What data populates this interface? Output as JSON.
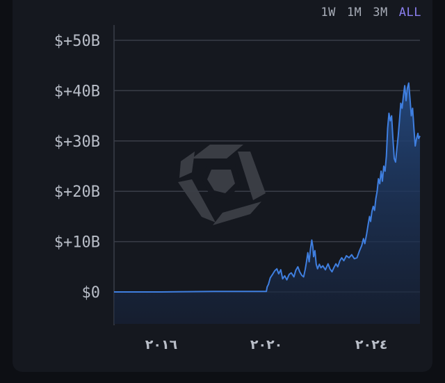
{
  "range_selector": {
    "options": [
      "1W",
      "1M",
      "3M",
      "ALL"
    ],
    "selected": "ALL"
  },
  "colors": {
    "line": "#3f7fe0",
    "fill_top": "#24487e",
    "fill_bottom": "#16223a",
    "grid": "#3a3e48",
    "active_range": "#8b7ff0",
    "watermark": "#3c3f47"
  },
  "watermark": {
    "icon": "arkham-logo-icon"
  },
  "chart_data": {
    "type": "area",
    "x_unit": "year",
    "xlim": [
      2014.2,
      2025.85
    ],
    "ylim": [
      -6,
      54
    ],
    "y_unit": "billions USD",
    "yticks": [
      0,
      10,
      20,
      30,
      40,
      50
    ],
    "ytick_labels": [
      "$0",
      "$+10B",
      "$+20B",
      "$+30B",
      "$+40B",
      "$+50B"
    ],
    "xticks": [
      2016,
      2020,
      2024
    ],
    "xtick_labels": [
      "٢٠١٦",
      "٢٠٢٠",
      "٢٠٢٤"
    ],
    "grid": true,
    "legend": "none",
    "series": [
      {
        "values": [
          [
            2014.2,
            0
          ],
          [
            2015.0,
            0
          ],
          [
            2016.0,
            0
          ],
          [
            2017.0,
            0.05
          ],
          [
            2018.0,
            0.1
          ],
          [
            2019.0,
            0.1
          ],
          [
            2019.8,
            0.1
          ],
          [
            2020.0,
            0.1
          ],
          [
            2020.03,
            1.0
          ],
          [
            2020.08,
            1.5
          ],
          [
            2020.15,
            2.8
          ],
          [
            2020.25,
            3.6
          ],
          [
            2020.32,
            4.2
          ],
          [
            2020.4,
            4.6
          ],
          [
            2020.47,
            3.6
          ],
          [
            2020.55,
            4.4
          ],
          [
            2020.62,
            2.6
          ],
          [
            2020.7,
            3.2
          ],
          [
            2020.78,
            2.4
          ],
          [
            2020.87,
            3.5
          ],
          [
            2020.95,
            3.8
          ],
          [
            2021.05,
            3.0
          ],
          [
            2021.12,
            4.3
          ],
          [
            2021.2,
            5.0
          ],
          [
            2021.27,
            4.0
          ],
          [
            2021.35,
            3.3
          ],
          [
            2021.42,
            3.0
          ],
          [
            2021.48,
            4.5
          ],
          [
            2021.53,
            6.0
          ],
          [
            2021.58,
            7.8
          ],
          [
            2021.63,
            6.0
          ],
          [
            2021.68,
            8.5
          ],
          [
            2021.73,
            10.3
          ],
          [
            2021.77,
            9.0
          ],
          [
            2021.8,
            7.0
          ],
          [
            2021.85,
            8.2
          ],
          [
            2021.9,
            5.5
          ],
          [
            2021.95,
            4.6
          ],
          [
            2022.02,
            5.5
          ],
          [
            2022.08,
            4.8
          ],
          [
            2022.15,
            5.2
          ],
          [
            2022.25,
            4.4
          ],
          [
            2022.35,
            5.6
          ],
          [
            2022.42,
            4.6
          ],
          [
            2022.5,
            4.0
          ],
          [
            2022.57,
            4.8
          ],
          [
            2022.65,
            5.6
          ],
          [
            2022.72,
            5.0
          ],
          [
            2022.8,
            6.2
          ],
          [
            2022.87,
            6.8
          ],
          [
            2022.95,
            6.2
          ],
          [
            2023.05,
            7.2
          ],
          [
            2023.15,
            6.8
          ],
          [
            2023.25,
            7.4
          ],
          [
            2023.35,
            6.6
          ],
          [
            2023.45,
            6.8
          ],
          [
            2023.55,
            8.2
          ],
          [
            2023.63,
            9.2
          ],
          [
            2023.7,
            10.6
          ],
          [
            2023.75,
            9.6
          ],
          [
            2023.82,
            11.5
          ],
          [
            2023.88,
            13.5
          ],
          [
            2023.93,
            15.0
          ],
          [
            2023.97,
            14.0
          ],
          [
            2024.02,
            16.0
          ],
          [
            2024.07,
            17.0
          ],
          [
            2024.12,
            16.2
          ],
          [
            2024.17,
            18.5
          ],
          [
            2024.22,
            20.0
          ],
          [
            2024.27,
            22.5
          ],
          [
            2024.32,
            21.5
          ],
          [
            2024.37,
            24.0
          ],
          [
            2024.42,
            22.0
          ],
          [
            2024.47,
            25.0
          ],
          [
            2024.52,
            24.0
          ],
          [
            2024.57,
            27.0
          ],
          [
            2024.62,
            32.5
          ],
          [
            2024.67,
            35.5
          ],
          [
            2024.72,
            34.0
          ],
          [
            2024.77,
            35.0
          ],
          [
            2024.82,
            30.5
          ],
          [
            2024.87,
            26.5
          ],
          [
            2024.92,
            25.8
          ],
          [
            2024.97,
            28.5
          ],
          [
            2025.02,
            31.0
          ],
          [
            2025.07,
            34.0
          ],
          [
            2025.12,
            37.5
          ],
          [
            2025.17,
            36.5
          ],
          [
            2025.22,
            39.0
          ],
          [
            2025.27,
            41.0
          ],
          [
            2025.32,
            38.0
          ],
          [
            2025.37,
            40.5
          ],
          [
            2025.42,
            41.5
          ],
          [
            2025.47,
            38.5
          ],
          [
            2025.52,
            35.0
          ],
          [
            2025.57,
            36.5
          ],
          [
            2025.62,
            32.5
          ],
          [
            2025.67,
            29.0
          ],
          [
            2025.72,
            30.5
          ],
          [
            2025.77,
            31.5
          ],
          [
            2025.8,
            30.5
          ],
          [
            2025.85,
            31.0
          ]
        ]
      }
    ]
  }
}
